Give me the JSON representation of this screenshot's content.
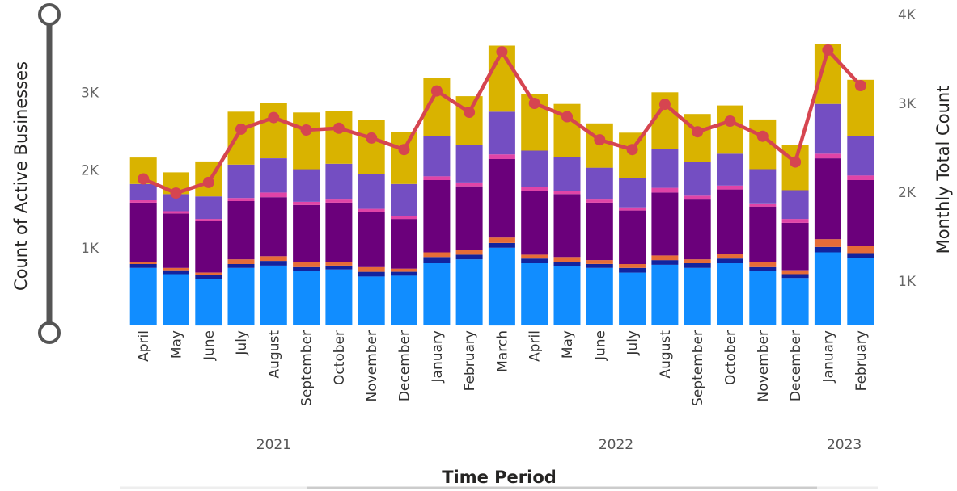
{
  "chart_data": {
    "type": "bar",
    "stacked": true,
    "xlabel": "Time Period",
    "ylabel": "Count of Active Businesses",
    "y2label": "Monthly Total Count",
    "ylim": [
      0,
      4000
    ],
    "y_ticks": [
      "1K",
      "2K",
      "3K"
    ],
    "y2lim": [
      500,
      4000
    ],
    "y2_ticks": [
      "1K",
      "2K",
      "3K",
      "4K"
    ],
    "categories": [
      "April",
      "May",
      "June",
      "July",
      "August",
      "September",
      "October",
      "November",
      "December",
      "January",
      "February",
      "March",
      "April",
      "May",
      "June",
      "July",
      "August",
      "September",
      "October",
      "November",
      "December",
      "January",
      "February"
    ],
    "year_groups": [
      {
        "label": "2021",
        "start": 0,
        "end": 8
      },
      {
        "label": "2022",
        "start": 9,
        "end": 20
      },
      {
        "label": "2023",
        "start": 21,
        "end": 22
      }
    ],
    "series": [
      {
        "color": "#118DFF",
        "values": [
          740,
          660,
          600,
          740,
          770,
          700,
          720,
          630,
          640,
          800,
          850,
          1000,
          800,
          760,
          740,
          680,
          780,
          740,
          800,
          700,
          610,
          940,
          870
        ]
      },
      {
        "color": "#12239E",
        "values": [
          50,
          50,
          50,
          50,
          60,
          50,
          50,
          60,
          50,
          80,
          60,
          60,
          60,
          60,
          50,
          60,
          60,
          60,
          60,
          50,
          50,
          70,
          60
        ]
      },
      {
        "color": "#E66C37",
        "values": [
          30,
          30,
          30,
          60,
          60,
          60,
          50,
          60,
          40,
          60,
          60,
          70,
          50,
          60,
          50,
          50,
          60,
          50,
          60,
          60,
          50,
          100,
          90
        ]
      },
      {
        "color": "#6B007B",
        "values": [
          760,
          700,
          660,
          750,
          760,
          740,
          760,
          710,
          640,
          930,
          820,
          1010,
          820,
          810,
          740,
          690,
          810,
          770,
          830,
          720,
          610,
          1040,
          850
        ]
      },
      {
        "color": "#E044A7",
        "values": [
          30,
          30,
          30,
          40,
          60,
          40,
          40,
          40,
          40,
          50,
          50,
          60,
          50,
          40,
          40,
          40,
          60,
          50,
          50,
          40,
          50,
          60,
          60
        ]
      },
      {
        "color": "#744EC2",
        "values": [
          210,
          220,
          290,
          430,
          440,
          420,
          460,
          450,
          410,
          520,
          480,
          550,
          470,
          440,
          410,
          380,
          500,
          430,
          410,
          440,
          370,
          640,
          510
        ]
      },
      {
        "color": "#D9B300",
        "values": [
          340,
          280,
          450,
          680,
          710,
          730,
          680,
          690,
          670,
          740,
          630,
          850,
          730,
          680,
          570,
          580,
          730,
          620,
          620,
          640,
          580,
          770,
          720
        ]
      }
    ],
    "line": {
      "color": "#D64550",
      "values": [
        2150,
        1990,
        2110,
        2710,
        2840,
        2700,
        2720,
        2610,
        2480,
        3140,
        2900,
        3580,
        3000,
        2850,
        2590,
        2480,
        2990,
        2680,
        2800,
        2630,
        2340,
        3600,
        3200
      ]
    },
    "grid": false,
    "legend": "none"
  }
}
